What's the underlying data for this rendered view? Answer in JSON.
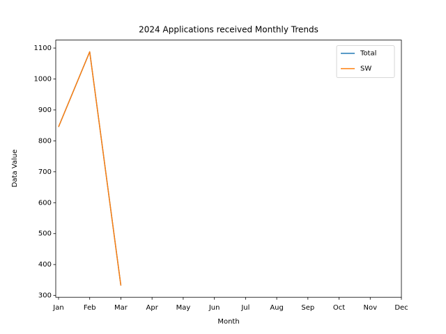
{
  "chart_data": {
    "type": "line",
    "title": "2024 Applications received Monthly Trends",
    "x_label": "Month",
    "y_label": "Data Value",
    "categories": [
      "Jan",
      "Feb",
      "Mar",
      "Apr",
      "May",
      "Jun",
      "Jul",
      "Aug",
      "Sep",
      "Oct",
      "Nov",
      "Dec"
    ],
    "series": [
      {
        "name": "Total",
        "color": "#1f77b4",
        "values": [
          845,
          1088,
          332,
          null,
          null,
          null,
          null,
          null,
          null,
          null,
          null,
          null
        ]
      },
      {
        "name": "SW",
        "color": "#ff7f0e",
        "values": [
          845,
          1088,
          332,
          null,
          null,
          null,
          null,
          null,
          null,
          null,
          null,
          null
        ]
      }
    ],
    "ylim": [
      294.2,
      1125.8
    ],
    "yticks": [
      300,
      400,
      500,
      600,
      700,
      800,
      900,
      1000,
      1100
    ],
    "grid": false,
    "legend": "upper right"
  }
}
